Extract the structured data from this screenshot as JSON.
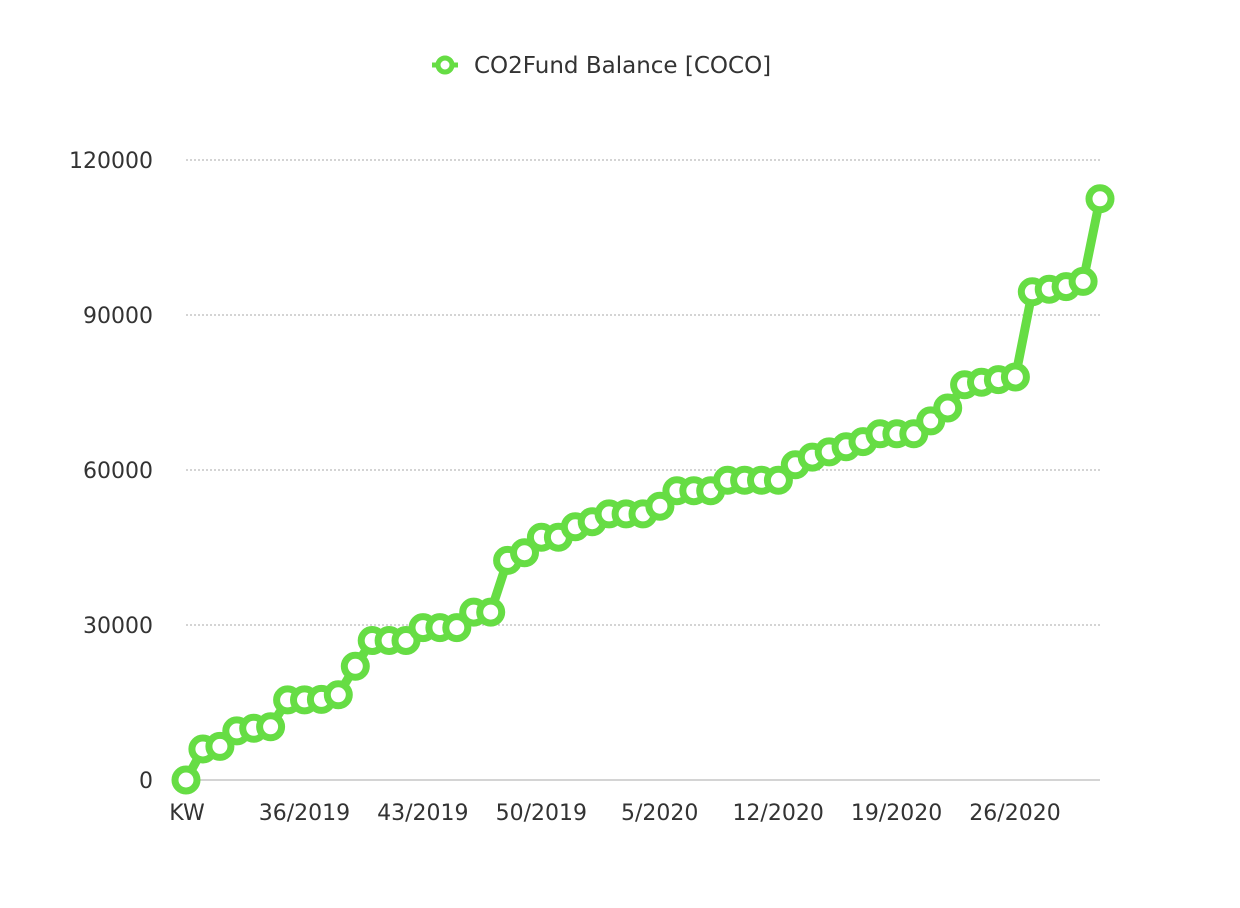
{
  "chart_data": {
    "type": "line",
    "title": "",
    "xlabel": "",
    "ylabel": "",
    "ylim": [
      0,
      120000
    ],
    "y_ticks": [
      0,
      30000,
      60000,
      90000,
      120000
    ],
    "grid": true,
    "legend": "top-center",
    "line_color": "#66dd44",
    "x_tick_labels": [
      "KW",
      "36/2019",
      "43/2019",
      "50/2019",
      "5/2020",
      "12/2020",
      "19/2020",
      "26/2020"
    ],
    "series": [
      {
        "name": "CO2Fund Balance [COCO]",
        "values": [
          0,
          6000,
          6500,
          9500,
          10000,
          10300,
          15500,
          15500,
          15600,
          16500,
          22000,
          27000,
          27000,
          27000,
          29500,
          29500,
          29500,
          32500,
          32500,
          42500,
          44000,
          47000,
          47000,
          49000,
          50000,
          51500,
          51500,
          51500,
          53000,
          56000,
          56000,
          56000,
          58000,
          58000,
          58000,
          58000,
          61000,
          62500,
          63500,
          64500,
          65500,
          67000,
          67000,
          67000,
          69500,
          72000,
          76500,
          77000,
          77500,
          78000,
          94500,
          95000,
          95500,
          96500,
          112500
        ]
      }
    ]
  }
}
